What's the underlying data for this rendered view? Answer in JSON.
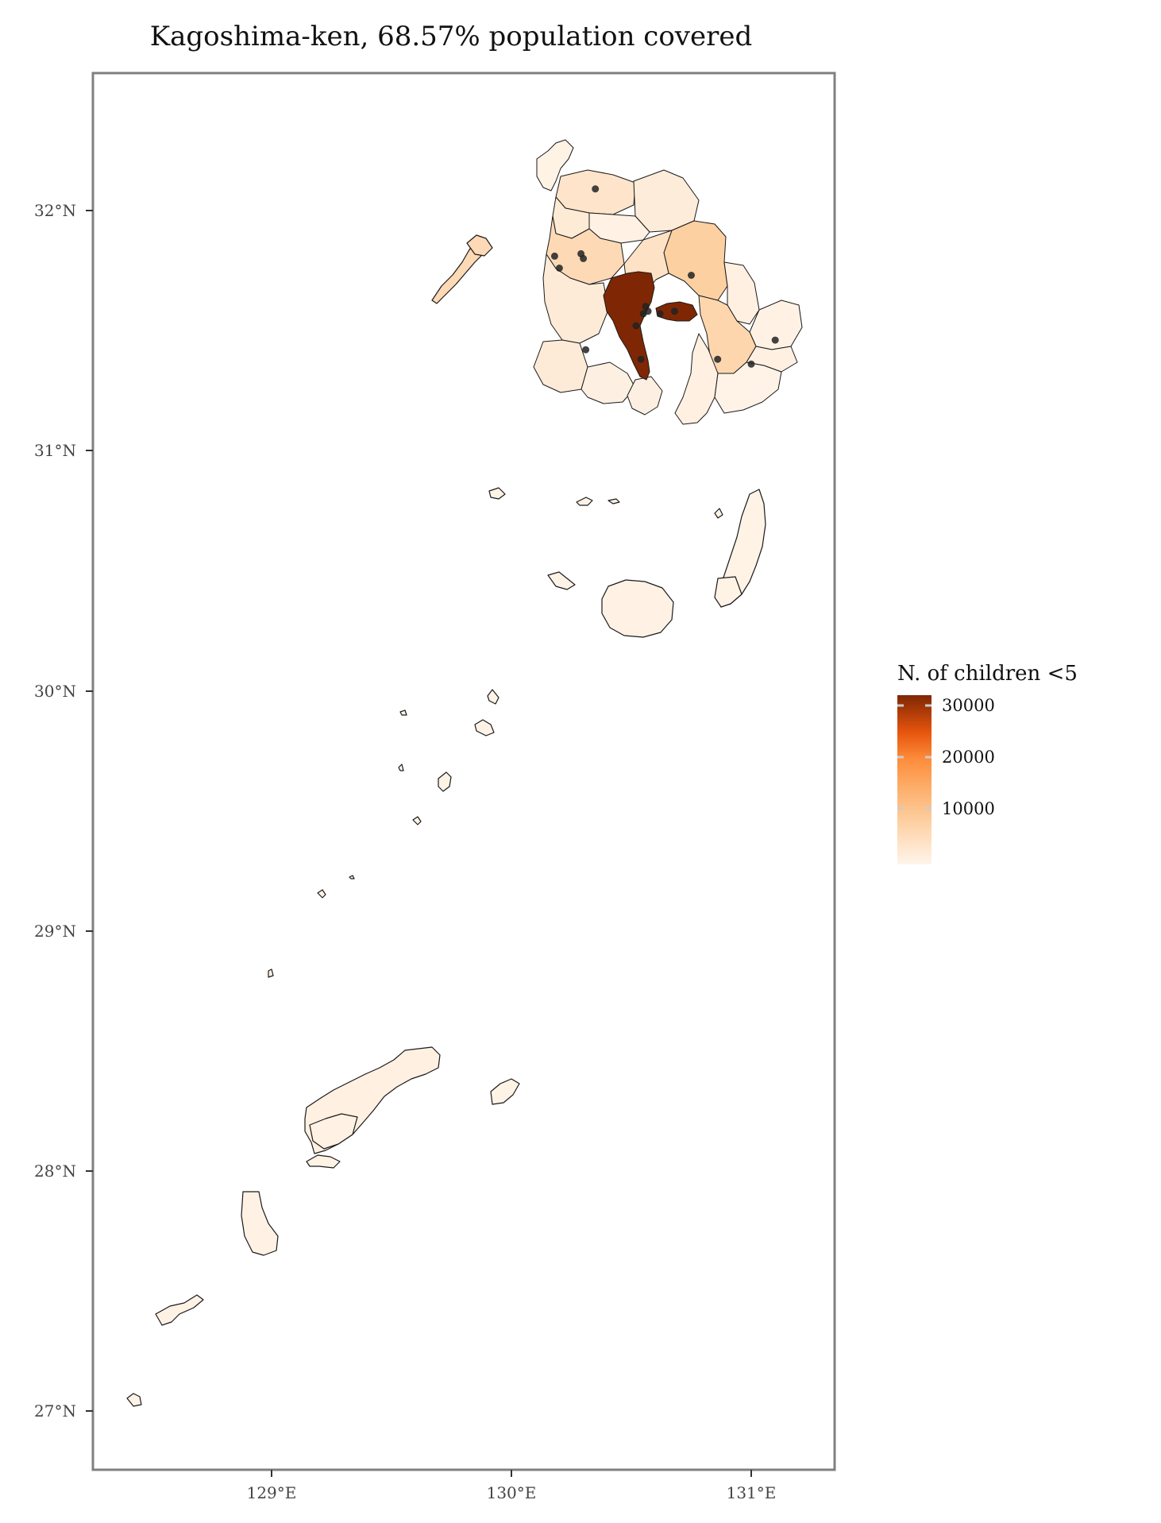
{
  "title": "Kagoshima-ken, 68.57% population covered",
  "axes": {
    "x_ticks": [
      "129°E",
      "130°E",
      "131°E"
    ],
    "y_ticks": [
      "32°N",
      "31°N",
      "30°N",
      "29°N",
      "28°N",
      "27°N"
    ]
  },
  "legend": {
    "title": "N. of children <5",
    "labels": [
      "30000",
      "20000",
      "10000"
    ],
    "scale_colors": [
      "#fff5eb",
      "#fdd0a2",
      "#fd8d3c",
      "#e6550d",
      "#a63603",
      "#7f2704"
    ]
  },
  "colors": {
    "border": "#808080",
    "low": "#fff5eb",
    "mid": "#fdd6ae",
    "high": "#7f2704"
  },
  "chart_data": {
    "type": "map",
    "title": "Kagoshima-ken, 68.57% population covered",
    "x_ticks": [
      129,
      130,
      131
    ],
    "y_ticks": [
      32,
      31,
      30,
      29,
      28,
      27
    ],
    "xlim": [
      128.25,
      131.35
    ],
    "ylim": [
      26.77,
      32.57
    ],
    "legend": {
      "title": "N. of children <5",
      "breaks": [
        10000,
        20000,
        30000
      ],
      "palette": "Oranges"
    },
    "points": [
      [
        130.35,
        32.09
      ],
      [
        130.29,
        31.82
      ],
      [
        130.3,
        31.8
      ],
      [
        130.18,
        31.81
      ],
      [
        130.2,
        31.76
      ],
      [
        130.75,
        31.73
      ],
      [
        130.56,
        31.6
      ],
      [
        130.57,
        31.58
      ],
      [
        130.55,
        31.57
      ],
      [
        130.62,
        31.57
      ],
      [
        130.68,
        31.58
      ],
      [
        130.52,
        31.52
      ],
      [
        130.31,
        31.42
      ],
      [
        130.54,
        31.38
      ],
      [
        130.86,
        31.38
      ],
      [
        131.0,
        31.36
      ],
      [
        131.1,
        31.46
      ]
    ]
  }
}
